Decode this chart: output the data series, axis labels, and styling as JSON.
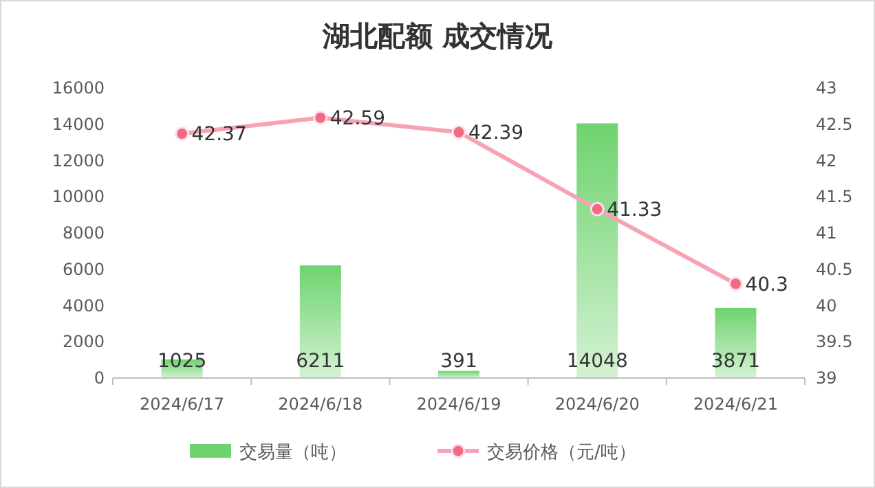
{
  "chart_data": {
    "type": "bar",
    "title": "湖北配额 成交情况",
    "categories": [
      "2024/6/17",
      "2024/6/18",
      "2024/6/19",
      "2024/6/20",
      "2024/6/21"
    ],
    "series": [
      {
        "name": "交易量（吨）",
        "color": "#6ed36e",
        "values": [
          1025,
          6211,
          391,
          14048,
          3871
        ]
      },
      {
        "name": "交易价格（元/吨）",
        "type": "line",
        "axis": "y2",
        "color": "#f7a3b3",
        "values": [
          42.37,
          42.59,
          42.39,
          41.33,
          40.3
        ]
      }
    ],
    "ylim": [
      0,
      16000
    ],
    "yticks": [
      0,
      2000,
      4000,
      6000,
      8000,
      10000,
      12000,
      14000,
      16000
    ],
    "y2lim": [
      39,
      43
    ],
    "y2ticks": [
      39,
      39.5,
      40,
      40.5,
      41,
      41.5,
      42,
      42.5,
      43
    ],
    "data_labels": true,
    "legend": "bottom",
    "marker": "circle",
    "grid": false
  }
}
